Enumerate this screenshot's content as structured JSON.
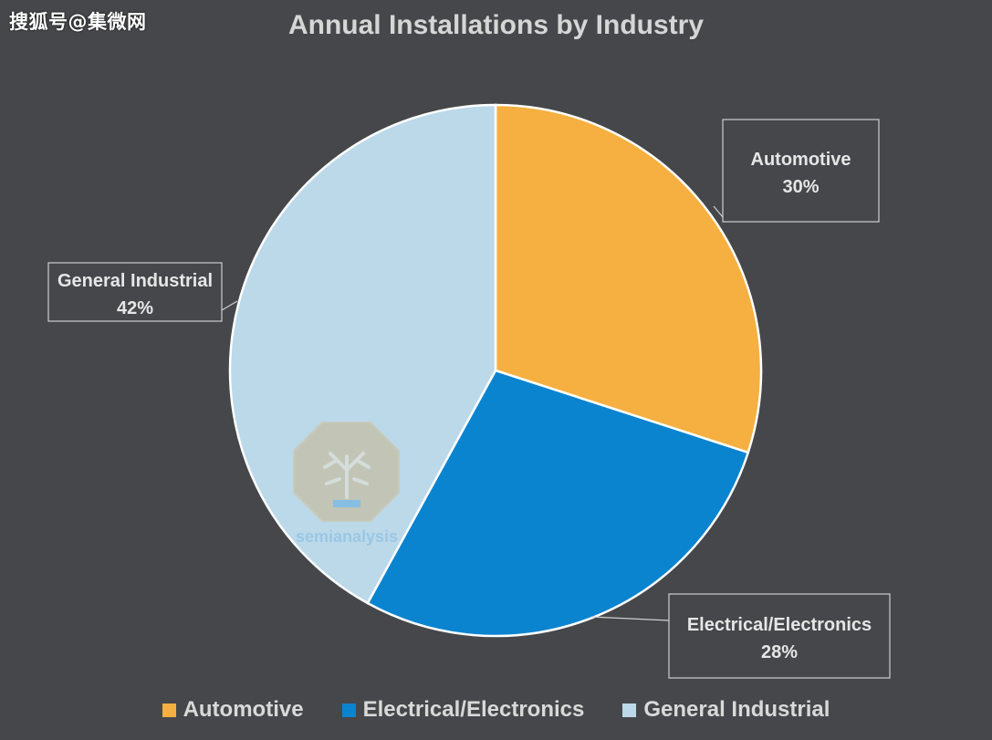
{
  "source_mark": "搜狐号@集微网",
  "watermark": "semianalysis",
  "colors": {
    "background": "#46474a",
    "automotive": "#f5b041",
    "electrical": "#0b84d0",
    "general": "#bcd9ea",
    "label_text": "#e6e6e6",
    "label_box": "#cfcfcf"
  },
  "chart_data": {
    "type": "pie",
    "title": "Annual Installations by Industry",
    "categories": [
      "Automotive",
      "Electrical/Electronics",
      "General Industrial"
    ],
    "values": [
      30,
      28,
      42
    ],
    "data_labels": [
      "30%",
      "28%",
      "42%"
    ],
    "start_angle_deg": 0,
    "direction": "clockwise",
    "legend_position": "bottom",
    "legend": [
      "Automotive",
      "Electrical/Electronics",
      "General Industrial"
    ]
  }
}
